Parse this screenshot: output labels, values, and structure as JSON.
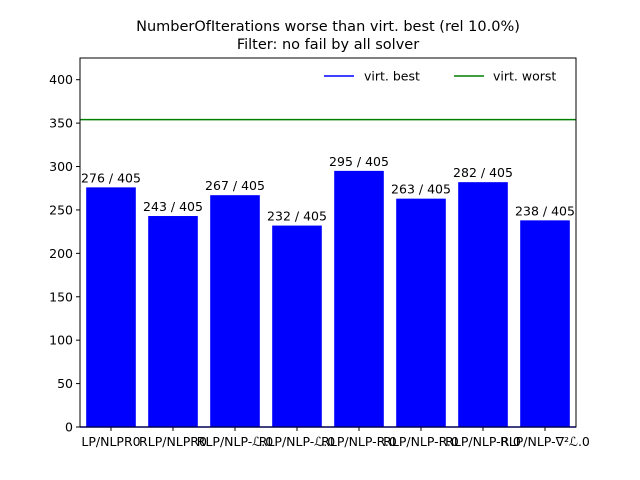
{
  "chart_data": {
    "type": "bar",
    "title": "NumberOfIterations worse than virt. best (rel 10.0%)",
    "subtitle": "Filter: no fail by all solver",
    "xlabel": "",
    "ylabel": "",
    "ylim": [
      0,
      425
    ],
    "yticks": [
      0,
      50,
      100,
      150,
      200,
      250,
      300,
      350,
      400
    ],
    "grid": false,
    "legend_position": "top-right",
    "categories": [
      "LP/NLPR0",
      "RLP/NLPR0",
      "RLP/NLP-ℒ.0",
      "RLP/NLP-ℒ.0",
      "RLP/NLP-R.0",
      "RLP/NLP-R.0",
      "RLP/NLP-R.0",
      "RLP/NLP-∇²ℒ.0"
    ],
    "series": [
      {
        "name": "",
        "color": "#0000ff",
        "values": [
          276,
          243,
          267,
          232,
          295,
          263,
          282,
          238
        ],
        "data_labels": [
          "276 / 405",
          "243 / 405",
          "267 / 405",
          "232 / 405",
          "295 / 405",
          "263 / 405",
          "282 / 405",
          "238 / 405"
        ]
      }
    ],
    "reference_lines": [
      {
        "name": "virt. best",
        "color": "#0000ff",
        "value": 0
      },
      {
        "name": "virt. worst",
        "color": "#008000",
        "value": 354
      }
    ]
  }
}
